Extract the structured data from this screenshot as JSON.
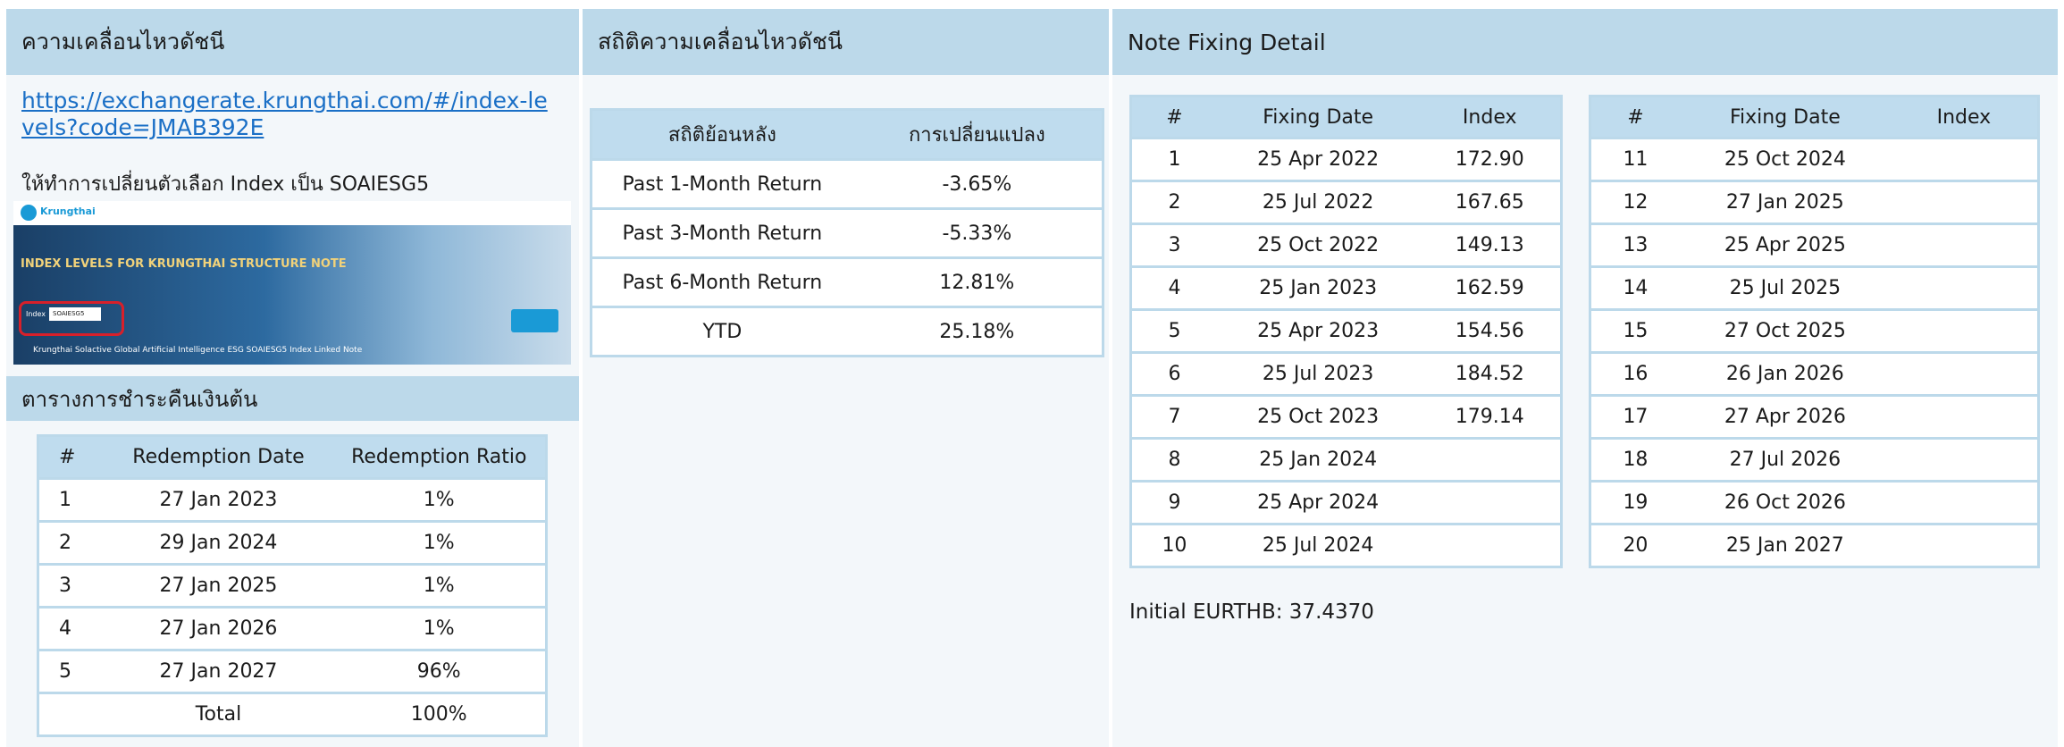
{
  "left": {
    "title": "ความเคลื่อนไหวดัชนี",
    "link": "https://exchangerate.krungthai.com/#/index-levels?code=JMAB392E",
    "instruction": "ให้ทำการเปลี่ยนตัวเลือก Index เป็น SOAIESG5",
    "screenshot": {
      "brand": "Krungthai",
      "heading": "INDEX LEVELS FOR KRUNGTHAI STRUCTURE NOTE",
      "index_label": "Index",
      "index_value": "SOAIESG5",
      "note_name": "Krungthai Solactive Global Artificial Intelligence ESG SOAIESG5 Index Linked Note"
    }
  },
  "redemption": {
    "title": "ตารางการชำระคืนเงินต้น",
    "columns": [
      "#",
      "Redemption Date",
      "Redemption Ratio"
    ],
    "rows": [
      [
        "1",
        "27 Jan 2023",
        "1%"
      ],
      [
        "2",
        "29 Jan 2024",
        "1%"
      ],
      [
        "3",
        "27 Jan 2025",
        "1%"
      ],
      [
        "4",
        "27 Jan 2026",
        "1%"
      ],
      [
        "5",
        "27 Jan 2027",
        "96%"
      ]
    ],
    "total": [
      "Total",
      "100%"
    ]
  },
  "stats": {
    "title": "สถิติความเคลื่อนไหวดัชนี",
    "columns": [
      "สถิติย้อนหลัง",
      "การเปลี่ยนแปลง"
    ],
    "rows": [
      [
        "Past 1-Month Return",
        "-3.65%"
      ],
      [
        "Past 3-Month Return",
        "-5.33%"
      ],
      [
        "Past 6-Month Return",
        "12.81%"
      ],
      [
        "YTD",
        "25.18%"
      ]
    ]
  },
  "fixing": {
    "title": "Note Fixing Detail",
    "columns": [
      "#",
      "Fixing Date",
      "Index"
    ],
    "tables": [
      [
        [
          "1",
          "25 Apr 2022",
          "172.90"
        ],
        [
          "2",
          "25 Jul 2022",
          "167.65"
        ],
        [
          "3",
          "25 Oct 2022",
          "149.13"
        ],
        [
          "4",
          "25 Jan 2023",
          "162.59"
        ],
        [
          "5",
          "25 Apr 2023",
          "154.56"
        ],
        [
          "6",
          "25 Jul 2023",
          "184.52"
        ],
        [
          "7",
          "25 Oct 2023",
          "179.14"
        ],
        [
          "8",
          "25 Jan 2024"
        ],
        [
          "9",
          "25 Apr 2024"
        ],
        [
          "10",
          "25 Jul 2024"
        ]
      ],
      [
        [
          "11",
          "25 Oct 2024"
        ],
        [
          "12",
          "27 Jan 2025"
        ],
        [
          "13",
          "25 Apr 2025"
        ],
        [
          "14",
          "25 Jul 2025"
        ],
        [
          "15",
          "27 Oct 2025"
        ],
        [
          "16",
          "26 Jan 2026"
        ],
        [
          "17",
          "27 Apr 2026"
        ],
        [
          "18",
          "27 Jul 2026"
        ],
        [
          "19",
          "26 Oct 2026"
        ],
        [
          "20",
          "25 Jan 2027"
        ]
      ]
    ],
    "note": "Initial EURTHB: 37.4370"
  }
}
